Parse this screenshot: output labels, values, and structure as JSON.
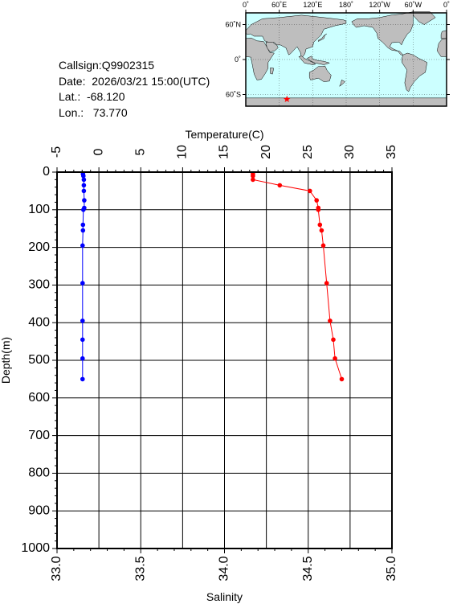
{
  "info": {
    "callsign": "Callsign:Q9902315",
    "date": "Date:  2026/03/21 15:00(UTC)",
    "lat": "Lat.:  -68.120",
    "lon": "Lon.:   73.770"
  },
  "map": {
    "top_labels": [
      "0˚",
      "60˚E",
      "120˚E",
      "180˚",
      "120˚W",
      "60˚W",
      "0˚"
    ],
    "right_labels": [
      "60˚N",
      "0˚",
      "60˚S"
    ],
    "ocean_color": "#ccffff",
    "land_color": "#bebebe",
    "marker": {
      "lon": 73.77,
      "lat": -68.12,
      "color": "#ff0000",
      "icon": "star-icon"
    }
  },
  "chart_data": {
    "type": "line",
    "x_top_label": "Temperature(C)",
    "x_bottom_label": "Salinity",
    "ylabel": "Depth(m)",
    "temperature_range": [
      -5,
      35
    ],
    "temperature_ticks": [
      "-5",
      "0",
      "5",
      "10",
      "15",
      "20",
      "25",
      "30",
      "35"
    ],
    "salinity_range": [
      33.0,
      35.0
    ],
    "salinity_ticks": [
      "33.0",
      "33.5",
      "34.0",
      "34.5",
      "35.0"
    ],
    "depth_range": [
      0,
      1000
    ],
    "depth_ticks": [
      "0",
      "100",
      "200",
      "300",
      "400",
      "500",
      "600",
      "700",
      "800",
      "900",
      "1000"
    ],
    "grid": true,
    "series": [
      {
        "axis": "temperature",
        "color": "#0000ff",
        "points": [
          [
            -1.9,
            5
          ],
          [
            -1.85,
            10
          ],
          [
            -1.8,
            20
          ],
          [
            -1.8,
            35
          ],
          [
            -1.8,
            50
          ],
          [
            -1.75,
            75
          ],
          [
            -1.75,
            95
          ],
          [
            -1.85,
            100
          ],
          [
            -1.9,
            140
          ],
          [
            -1.9,
            155
          ],
          [
            -1.95,
            195
          ],
          [
            -1.95,
            295
          ],
          [
            -1.95,
            395
          ],
          [
            -1.95,
            445
          ],
          [
            -1.95,
            495
          ],
          [
            -1.95,
            550
          ]
        ]
      },
      {
        "axis": "salinity",
        "color": "#ff0000",
        "points": [
          [
            34.17,
            5
          ],
          [
            34.17,
            10
          ],
          [
            34.17,
            20
          ],
          [
            34.33,
            35
          ],
          [
            34.51,
            50
          ],
          [
            34.55,
            75
          ],
          [
            34.56,
            95
          ],
          [
            34.56,
            100
          ],
          [
            34.57,
            140
          ],
          [
            34.58,
            155
          ],
          [
            34.59,
            195
          ],
          [
            34.61,
            295
          ],
          [
            34.63,
            395
          ],
          [
            34.65,
            445
          ],
          [
            34.66,
            495
          ],
          [
            34.7,
            550
          ]
        ]
      }
    ]
  }
}
